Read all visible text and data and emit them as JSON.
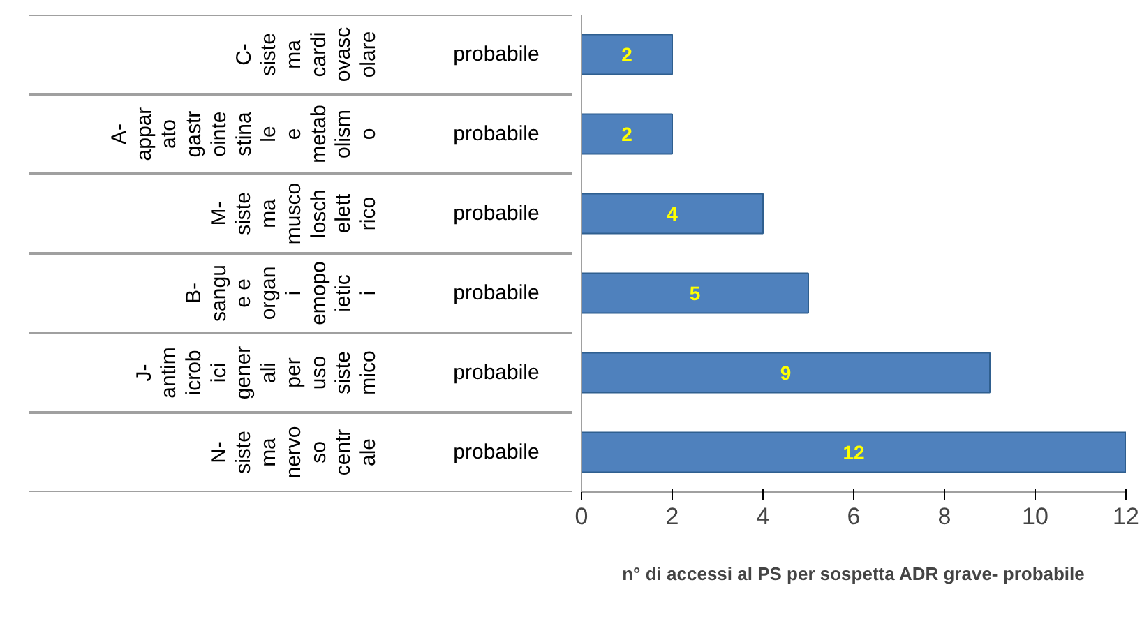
{
  "chart_data": {
    "type": "bar",
    "orientation": "horizontal",
    "xlabel": "n° di accessi al PS per sospetta ADR grave- probabile",
    "categories": [
      "C-sistema cardiovascolare\nprobabile",
      "A-apparato gastrointestinale e metabolismo\nprobabile",
      "M-sistema muscoloschelettrico\nprobabile",
      "B-sangue e organi emopoietici\nprobabile",
      "J-antimicrobici generali per uso sistemico\nprobabile",
      "N-sistema nervoso centrale\nprobabile"
    ],
    "values": [
      2,
      2,
      4,
      5,
      9,
      12
    ],
    "color": "#4f81bd",
    "data_labels": true,
    "xlim": [
      0,
      12
    ],
    "xticks": [
      0,
      2,
      4,
      6,
      8,
      10,
      12
    ],
    "grid": false
  }
}
